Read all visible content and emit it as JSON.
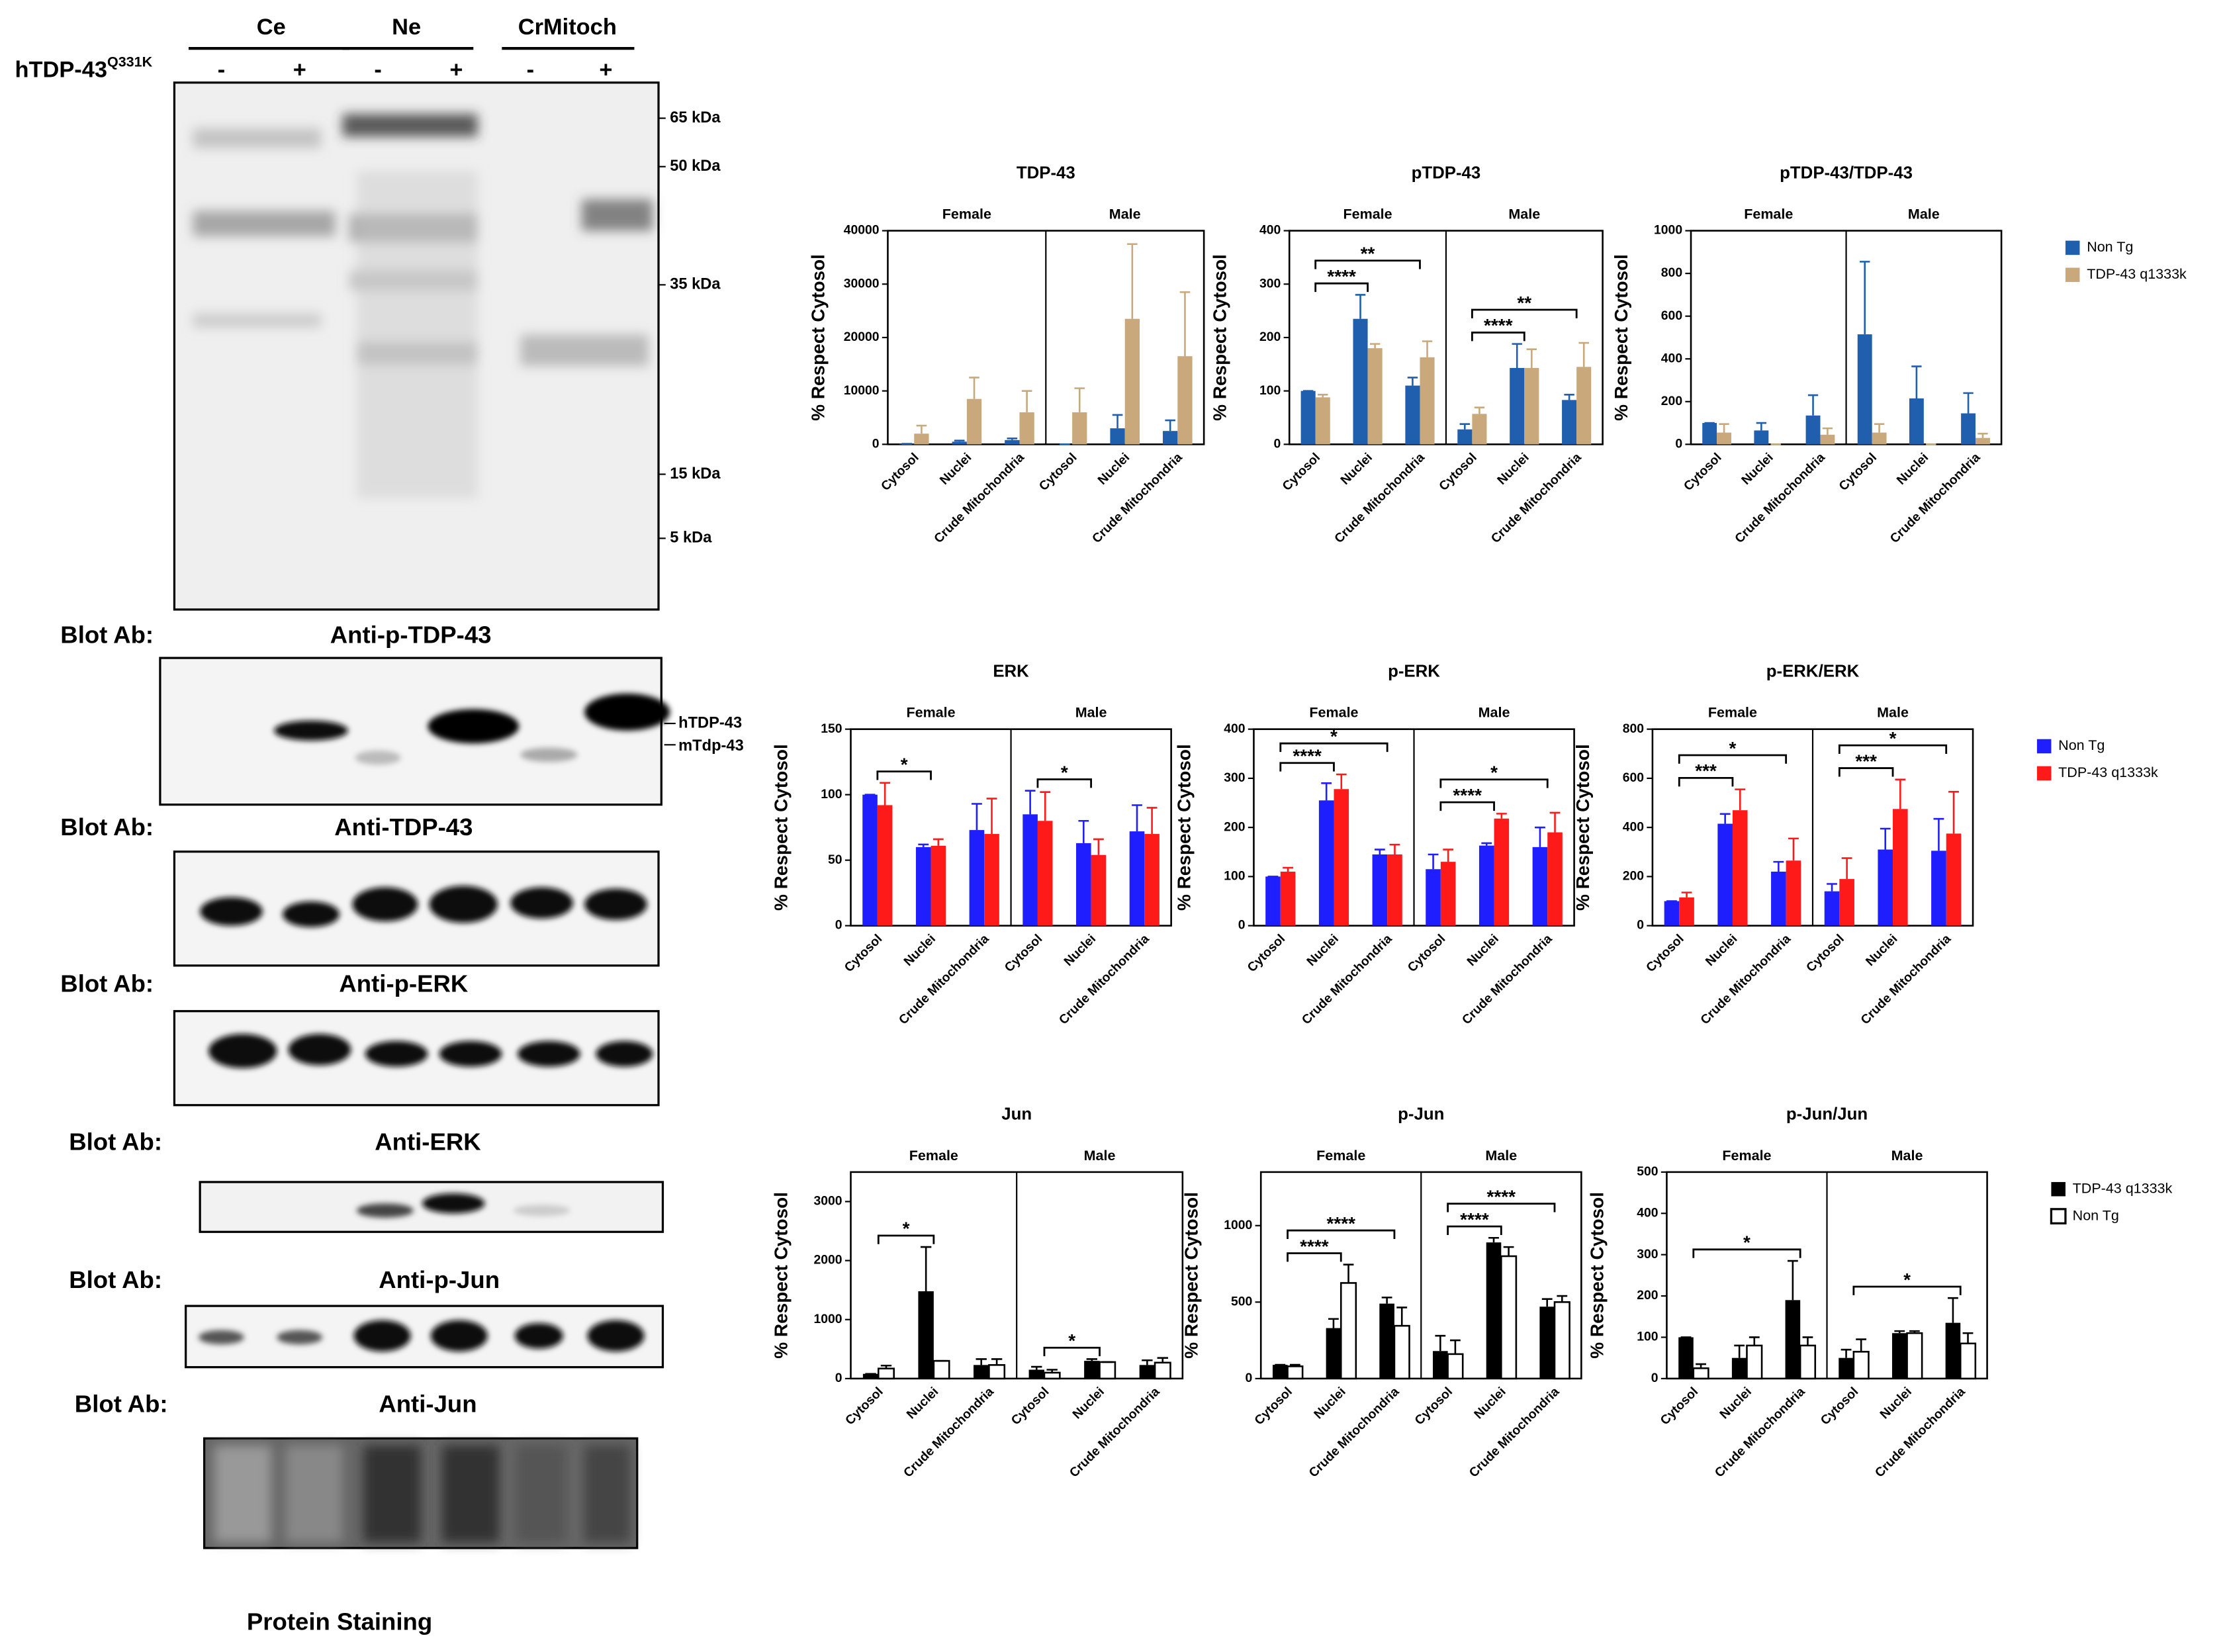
{
  "blots": {
    "columns": [
      "Ce",
      "Ne",
      "CrMitoch"
    ],
    "construct": "hTDP-43",
    "construct_sup": "Q331K",
    "signs": [
      "-",
      "+",
      "-",
      "+",
      "-",
      "+"
    ],
    "markers": [
      "65 kDa",
      "50 kDa",
      "35 kDa",
      "15 kDa",
      "5 kDa"
    ],
    "panels": [
      {
        "prefix": "Blot Ab:",
        "antibody": "Anti-p-TDP-43"
      },
      {
        "prefix": "Blot Ab:",
        "antibody": "Anti-TDP-43"
      },
      {
        "prefix": "Blot Ab:",
        "antibody": "Anti-p-ERK"
      },
      {
        "prefix": "Blot Ab:",
        "antibody": "Anti-ERK"
      },
      {
        "prefix": "Blot Ab:",
        "antibody": "Anti-p-Jun"
      },
      {
        "prefix": "Blot Ab:",
        "antibody": "Anti-Jun"
      }
    ],
    "band_labels": [
      "hTDP-43",
      "mTdp-43"
    ],
    "footer": "Protein Staining"
  },
  "chart_data": [
    {
      "type": "bar",
      "title": "TDP-43",
      "y_label": "% Respect Cytosol",
      "groups": [
        "Female",
        "Male"
      ],
      "categories": [
        "Cytosol",
        "Nuclei",
        "Crude Mitochondria",
        "Cytosol",
        "Nuclei",
        "Crude Mitochondria"
      ],
      "series": [
        {
          "name": "Non Tg",
          "color": "#1f5fae",
          "values": [
            100,
            500,
            800,
            0,
            3000,
            2500
          ],
          "errors": [
            0,
            200,
            300,
            0,
            2500,
            2000
          ]
        },
        {
          "name": "TDP-43 q1333k",
          "color": "#c9a97c",
          "values": [
            2000,
            8500,
            6000,
            6000,
            23500,
            16500
          ],
          "errors": [
            1500,
            4000,
            4000,
            4500,
            14000,
            12000
          ]
        }
      ],
      "ylim": [
        0,
        40000
      ],
      "yticks": [
        0,
        10000,
        20000,
        30000,
        40000
      ],
      "annotations": [],
      "legend": false
    },
    {
      "type": "bar",
      "title": "pTDP-43",
      "y_label": "% Respect Cytosol",
      "groups": [
        "Female",
        "Male"
      ],
      "categories": [
        "Cytosol",
        "Nuclei",
        "Crude Mitochondria",
        "Cytosol",
        "Nuclei",
        "Crude Mitochondria"
      ],
      "series": [
        {
          "name": "Non Tg",
          "color": "#1f5fae",
          "values": [
            100,
            235,
            110,
            28,
            143,
            83
          ],
          "errors": [
            0,
            45,
            15,
            10,
            45,
            10
          ]
        },
        {
          "name": "TDP-43 q1333k",
          "color": "#c9a97c",
          "values": [
            88,
            180,
            163,
            57,
            143,
            145
          ],
          "errors": [
            5,
            8,
            30,
            12,
            35,
            45
          ]
        }
      ],
      "ylim": [
        0,
        400
      ],
      "yticks": [
        0,
        100,
        200,
        300,
        400
      ],
      "annotations": [
        {
          "text": "****",
          "from": 0,
          "to": 1
        },
        {
          "text": "**",
          "from": 0,
          "to": 2
        },
        {
          "text": "****",
          "from": 3,
          "to": 4
        },
        {
          "text": "**",
          "from": 3,
          "to": 5
        }
      ],
      "legend": false
    },
    {
      "type": "bar",
      "title": "pTDP-43/TDP-43",
      "y_label": "% Respect Cytosol",
      "groups": [
        "Female",
        "Male"
      ],
      "categories": [
        "Cytosol",
        "Nuclei",
        "Crude Mitochondria",
        "Cytosol",
        "Nuclei",
        "Crude Mitochondria"
      ],
      "series": [
        {
          "name": "Non Tg",
          "color": "#1f5fae",
          "values": [
            100,
            65,
            135,
            515,
            215,
            145
          ],
          "errors": [
            0,
            35,
            95,
            340,
            150,
            95
          ]
        },
        {
          "name": "TDP-43 q1333k",
          "color": "#c9a97c",
          "values": [
            55,
            0,
            45,
            55,
            0,
            30
          ],
          "errors": [
            40,
            0,
            30,
            40,
            0,
            20
          ]
        }
      ],
      "ylim": [
        0,
        1000
      ],
      "yticks": [
        0,
        200,
        400,
        600,
        800,
        1000
      ],
      "annotations": [],
      "legend": true
    },
    {
      "type": "bar",
      "title": "ERK",
      "y_label": "% Respect Cytosol",
      "groups": [
        "Female",
        "Male"
      ],
      "categories": [
        "Cytosol",
        "Nuclei",
        "Crude Mitochondria",
        "Cytosol",
        "Nuclei",
        "Crude Mitochondria"
      ],
      "series": [
        {
          "name": "Non Tg",
          "color": "#1e1eff",
          "values": [
            100,
            60,
            73,
            85,
            63,
            72
          ],
          "errors": [
            0,
            2,
            20,
            18,
            17,
            20
          ]
        },
        {
          "name": "TDP-43 q1333k",
          "color": "#ff1a1a",
          "values": [
            92,
            61,
            70,
            80,
            54,
            70
          ],
          "errors": [
            17,
            5,
            27,
            22,
            12,
            20
          ]
        }
      ],
      "ylim": [
        0,
        150
      ],
      "yticks": [
        0,
        50,
        100,
        150
      ],
      "annotations": [
        {
          "text": "*",
          "from": 0,
          "to": 1
        },
        {
          "text": "*",
          "from": 3,
          "to": 4
        }
      ],
      "legend": false
    },
    {
      "type": "bar",
      "title": "p-ERK",
      "y_label": "% Respect Cytosol",
      "groups": [
        "Female",
        "Male"
      ],
      "categories": [
        "Cytosol",
        "Nuclei",
        "Crude Mitochondria",
        "Cytosol",
        "Nuclei",
        "Crude Mitochondria"
      ],
      "series": [
        {
          "name": "Non Tg",
          "color": "#1e1eff",
          "values": [
            100,
            255,
            145,
            115,
            163,
            160
          ],
          "errors": [
            0,
            35,
            10,
            30,
            5,
            40
          ]
        },
        {
          "name": "TDP-43 q1333k",
          "color": "#ff1a1a",
          "values": [
            110,
            278,
            145,
            130,
            218,
            190
          ],
          "errors": [
            8,
            30,
            20,
            25,
            10,
            40
          ]
        }
      ],
      "ylim": [
        0,
        400
      ],
      "yticks": [
        0,
        100,
        200,
        300,
        400
      ],
      "annotations": [
        {
          "text": "****",
          "from": 0,
          "to": 1
        },
        {
          "text": "*",
          "from": 0,
          "to": 2
        },
        {
          "text": "****",
          "from": 3,
          "to": 4
        },
        {
          "text": "*",
          "from": 3,
          "to": 5
        }
      ],
      "legend": false
    },
    {
      "type": "bar",
      "title": "p-ERK/ERK",
      "y_label": "% Respect Cytosol",
      "groups": [
        "Female",
        "Male"
      ],
      "categories": [
        "Cytosol",
        "Nuclei",
        "Crude Mitochondria",
        "Cytosol",
        "Nuclei",
        "Crude Mitochondria"
      ],
      "series": [
        {
          "name": "Non Tg",
          "color": "#1e1eff",
          "values": [
            100,
            415,
            220,
            140,
            310,
            305
          ],
          "errors": [
            0,
            40,
            40,
            30,
            85,
            130
          ]
        },
        {
          "name": "TDP-43 q1333k",
          "color": "#ff1a1a",
          "values": [
            115,
            470,
            265,
            190,
            475,
            375
          ],
          "errors": [
            20,
            85,
            90,
            85,
            120,
            170
          ]
        }
      ],
      "ylim": [
        0,
        800
      ],
      "yticks": [
        0,
        200,
        400,
        600,
        800
      ],
      "annotations": [
        {
          "text": "***",
          "from": 0,
          "to": 1
        },
        {
          "text": "*",
          "from": 0,
          "to": 2
        },
        {
          "text": "***",
          "from": 3,
          "to": 4
        },
        {
          "text": "*",
          "from": 3,
          "to": 5
        }
      ],
      "legend": true
    },
    {
      "type": "bar",
      "title": "Jun",
      "y_label": "% Respect Cytosol",
      "groups": [
        "Female",
        "Male"
      ],
      "categories": [
        "Cytosol",
        "Nuclei",
        "Crude Mitochondria",
        "Cytosol",
        "Nuclei",
        "Crude Mitochondria"
      ],
      "series": [
        {
          "name": "TDP-43 q1333k",
          "color": "#000000",
          "values": [
            80,
            1480,
            230,
            150,
            300,
            230
          ],
          "errors": [
            0,
            750,
            100,
            50,
            30,
            80
          ]
        },
        {
          "name": "Non Tg",
          "color": "#ffffff",
          "values": [
            170,
            300,
            230,
            100,
            280,
            270
          ],
          "errors": [
            50,
            0,
            100,
            50,
            0,
            80
          ]
        }
      ],
      "ylim": [
        0,
        3500
      ],
      "yticks": [
        0,
        1000,
        2000,
        3000
      ],
      "annotations": [
        {
          "text": "*",
          "from": 0,
          "to": 1
        },
        {
          "text": "*",
          "from": 3,
          "to": 4
        }
      ],
      "legend": false
    },
    {
      "type": "bar",
      "title": "p-Jun",
      "y_label": "% Respect Cytosol",
      "groups": [
        "Female",
        "Male"
      ],
      "categories": [
        "Cytosol",
        "Nuclei",
        "Crude Mitochondria",
        "Cytosol",
        "Nuclei",
        "Crude Mitochondria"
      ],
      "series": [
        {
          "name": "TDP-43 q1333k",
          "color": "#000000",
          "values": [
            90,
            330,
            490,
            180,
            890,
            470
          ],
          "errors": [
            0,
            60,
            40,
            100,
            30,
            50
          ]
        },
        {
          "name": "Non Tg",
          "color": "#ffffff",
          "values": [
            80,
            625,
            345,
            160,
            800,
            500
          ],
          "errors": [
            10,
            120,
            120,
            90,
            60,
            40
          ]
        }
      ],
      "ylim": [
        0,
        1350
      ],
      "yticks": [
        0,
        500,
        1000
      ],
      "annotations": [
        {
          "text": "****",
          "from": 0,
          "to": 1
        },
        {
          "text": "****",
          "from": 0,
          "to": 2
        },
        {
          "text": "****",
          "from": 3,
          "to": 4
        },
        {
          "text": "****",
          "from": 3,
          "to": 5
        }
      ],
      "legend": false
    },
    {
      "type": "bar",
      "title": "p-Jun/Jun",
      "y_label": "% Respect Cytosol",
      "groups": [
        "Female",
        "Male"
      ],
      "categories": [
        "Cytosol",
        "Nuclei",
        "Crude Mitochondria",
        "Cytosol",
        "Nuclei",
        "Crude Mitochondria"
      ],
      "series": [
        {
          "name": "TDP-43 q1333k",
          "color": "#000000",
          "values": [
            100,
            50,
            190,
            50,
            110,
            135
          ],
          "errors": [
            0,
            30,
            95,
            20,
            5,
            60
          ]
        },
        {
          "name": "Non Tg",
          "color": "#ffffff",
          "values": [
            25,
            80,
            80,
            65,
            110,
            85
          ],
          "errors": [
            10,
            20,
            20,
            30,
            5,
            25
          ]
        }
      ],
      "ylim": [
        0,
        500
      ],
      "yticks": [
        0,
        100,
        200,
        300,
        400,
        500
      ],
      "annotations": [
        {
          "text": "*",
          "from": 0,
          "to": 2
        },
        {
          "text": "*",
          "from": 3,
          "to": 5
        }
      ],
      "legend": true
    }
  ]
}
